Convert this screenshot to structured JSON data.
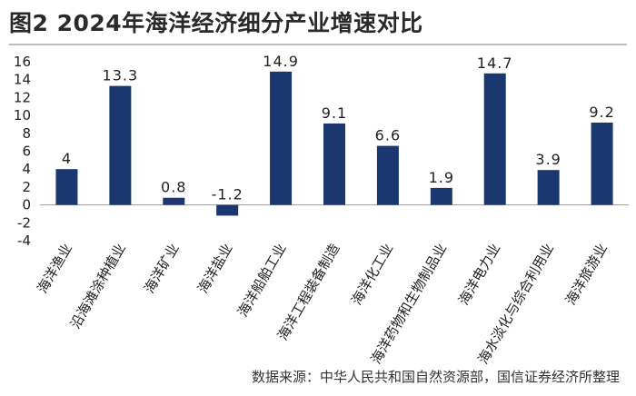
{
  "title": "图2  2024年海洋经济细分产业增速对比",
  "source": "数据来源：中华人民共和国自然资源部，国信证券经济所整理",
  "colors": {
    "bar": "#1b3770",
    "axis": "#999999"
  },
  "chart_data": {
    "type": "bar",
    "title": "图2  2024年海洋经济细分产业增速对比",
    "xlabel": "",
    "ylabel": "",
    "ylim": [
      -4,
      16
    ],
    "yticks": [
      16,
      14,
      12,
      10,
      8,
      6,
      4,
      2,
      0,
      -2,
      -4
    ],
    "grid": false,
    "categories": [
      "海洋渔业",
      "沿海滩涂种植业",
      "海洋矿业",
      "海洋盐业",
      "海洋船舶工业",
      "海洋工程装备制造",
      "海洋化工业",
      "海洋药物和生物制品业",
      "海洋电力业",
      "海水淡化与综合利用业",
      "海洋旅游业"
    ],
    "values": [
      4,
      13.3,
      0.8,
      -1.2,
      14.9,
      9.1,
      6.6,
      1.9,
      14.7,
      3.9,
      9.2
    ],
    "data_labels": [
      "4",
      "13.3",
      "0.8",
      "-1.2",
      "14.9",
      "9.1",
      "6.6",
      "1.9",
      "14.7",
      "3.9",
      "9.2"
    ]
  }
}
